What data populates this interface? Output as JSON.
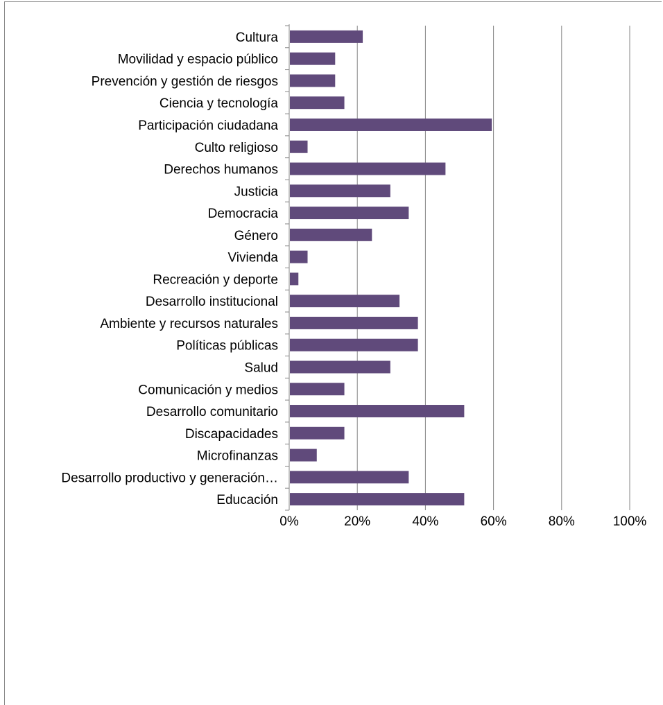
{
  "chart_data": {
    "type": "bar",
    "orientation": "horizontal",
    "categories": [
      "Cultura",
      "Movilidad y espacio público",
      "Prevención y gestión de riesgos",
      "Ciencia y tecnología",
      "Participación ciudadana",
      "Culto religioso",
      "Derechos humanos",
      "Justicia",
      "Democracia",
      "Género",
      "Vivienda",
      "Recreación y deporte",
      "Desarrollo institucional",
      "Ambiente y recursos naturales",
      "Políticas públicas",
      "Salud",
      "Comunicación y medios",
      "Desarrollo comunitario",
      "Discapacidades",
      "Microfinanzas",
      "Desarrollo productivo y generación…",
      "Educación"
    ],
    "values": [
      21.6,
      13.5,
      13.5,
      16.2,
      59.5,
      5.4,
      45.9,
      29.7,
      35.1,
      24.3,
      5.4,
      2.7,
      32.4,
      37.8,
      37.8,
      29.7,
      16.2,
      51.4,
      16.2,
      8.1,
      35.1,
      51.4
    ],
    "xlim": [
      0,
      100
    ],
    "x_ticks": [
      "0%",
      "20%",
      "40%",
      "60%",
      "80%",
      "100%"
    ],
    "x_tick_values": [
      0,
      20,
      40,
      60,
      80,
      100
    ],
    "grid": "vertical-major",
    "legend": "none",
    "colors": {
      "bar": "#604A7B",
      "grid": "#868686",
      "axis": "#868686"
    }
  }
}
